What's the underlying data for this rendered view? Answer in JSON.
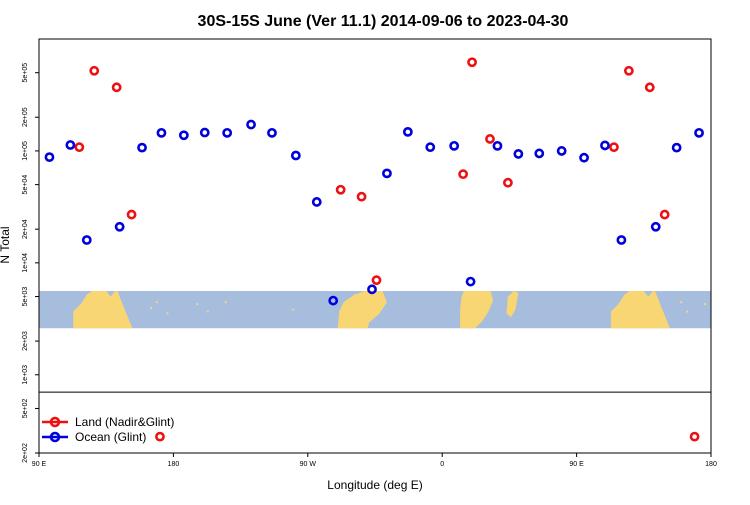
{
  "chart_data": {
    "type": "scatter",
    "title": "30S-15S June (Ver 11.1)   2014-09-06 to 2023-04-30",
    "xlabel": "Longitude (deg E)",
    "ylabel": "N Total",
    "y_scale": "log",
    "xlim": [
      90,
      540
    ],
    "ylim": [
      200,
      1000000
    ],
    "x_ticks": [
      {
        "value": 90,
        "label": "90 E"
      },
      {
        "value": 180,
        "label": "180"
      },
      {
        "value": 270,
        "label": "90 W"
      },
      {
        "value": 360,
        "label": "0"
      },
      {
        "value": 450,
        "label": "90 E"
      },
      {
        "value": 540,
        "label": "180"
      }
    ],
    "y_ticks": [
      {
        "value": 200,
        "label": "2e+02"
      },
      {
        "value": 500,
        "label": "5e+02"
      },
      {
        "value": 1000,
        "label": "1e+03"
      },
      {
        "value": 2000,
        "label": "2e+03"
      },
      {
        "value": 5000,
        "label": "5e+03"
      },
      {
        "value": 10000,
        "label": "1e+04"
      },
      {
        "value": 20000,
        "label": "2e+04"
      },
      {
        "value": 50000,
        "label": "5e+04"
      },
      {
        "value": 100000,
        "label": "1e+05"
      },
      {
        "value": 200000,
        "label": "2e+05"
      },
      {
        "value": 500000,
        "label": "5e+05"
      }
    ],
    "map_band": {
      "y_range": [
        2600,
        5600
      ]
    },
    "legend": {
      "position": "bottom-left"
    },
    "series": [
      {
        "name": "Land (Nadir&Glint)",
        "color": "#ee1111",
        "points": [
          {
            "x": 117,
            "y": 108000
          },
          {
            "x": 127,
            "y": 520000
          },
          {
            "x": 142,
            "y": 370000
          },
          {
            "x": 152,
            "y": 27000
          },
          {
            "x": 171,
            "y": 280
          },
          {
            "x": 292,
            "y": 45000
          },
          {
            "x": 306,
            "y": 39000
          },
          {
            "x": 316,
            "y": 7000
          },
          {
            "x": 374,
            "y": 62000
          },
          {
            "x": 380,
            "y": 620000
          },
          {
            "x": 392,
            "y": 128000
          },
          {
            "x": 404,
            "y": 52000
          },
          {
            "x": 475,
            "y": 108000
          },
          {
            "x": 485,
            "y": 520000
          },
          {
            "x": 499,
            "y": 370000
          },
          {
            "x": 509,
            "y": 27000
          },
          {
            "x": 529,
            "y": 280
          }
        ]
      },
      {
        "name": "Ocean (Glint)",
        "color": "#0000dd",
        "points": [
          {
            "x": 97,
            "y": 88000
          },
          {
            "x": 111,
            "y": 113000
          },
          {
            "x": 122,
            "y": 16000
          },
          {
            "x": 144,
            "y": 21000
          },
          {
            "x": 159,
            "y": 107000
          },
          {
            "x": 172,
            "y": 145000
          },
          {
            "x": 187,
            "y": 138000
          },
          {
            "x": 201,
            "y": 146000
          },
          {
            "x": 216,
            "y": 145000
          },
          {
            "x": 232,
            "y": 172000
          },
          {
            "x": 246,
            "y": 145000
          },
          {
            "x": 262,
            "y": 91000
          },
          {
            "x": 276,
            "y": 35000
          },
          {
            "x": 287,
            "y": 4600
          },
          {
            "x": 313,
            "y": 5800
          },
          {
            "x": 323,
            "y": 63000
          },
          {
            "x": 337,
            "y": 148000
          },
          {
            "x": 352,
            "y": 108000
          },
          {
            "x": 368,
            "y": 111000
          },
          {
            "x": 379,
            "y": 6800
          },
          {
            "x": 397,
            "y": 111000
          },
          {
            "x": 411,
            "y": 94000
          },
          {
            "x": 425,
            "y": 95000
          },
          {
            "x": 440,
            "y": 100000
          },
          {
            "x": 455,
            "y": 87000
          },
          {
            "x": 469,
            "y": 112000
          },
          {
            "x": 480,
            "y": 16000
          },
          {
            "x": 503,
            "y": 21000
          },
          {
            "x": 517,
            "y": 107000
          },
          {
            "x": 532,
            "y": 145000
          }
        ]
      }
    ]
  }
}
